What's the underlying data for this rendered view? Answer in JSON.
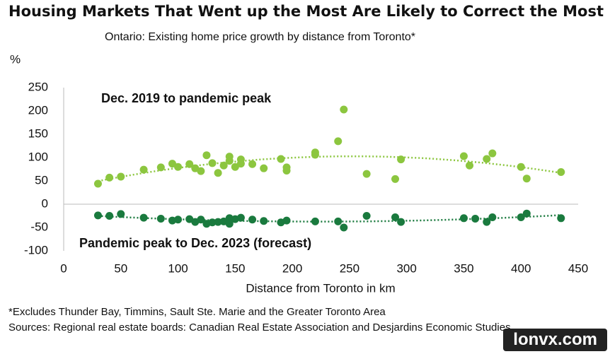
{
  "chart_data": {
    "type": "scatter",
    "title": "Housing Markets That Went up the Most Are Likely to Correct the Most",
    "subtitle": "Ontario: Existing home price growth by distance from Toronto*",
    "y_label": "%",
    "x_label": "Distance from Toronto in km",
    "footnotes": [
      "*Excludes Thunder Bay, Timmins, Sault Ste. Marie and the Greater Toronto Area",
      "Sources: Regional real estate boards: Canadian Real Estate Association and Desjardins Economic Studies"
    ],
    "watermark": "lonvx.com",
    "xlim": [
      0,
      450
    ],
    "xticks": [
      0,
      50,
      100,
      150,
      200,
      250,
      300,
      350,
      400,
      450
    ],
    "ylim": [
      -100,
      250
    ],
    "yticks": [
      -100,
      -50,
      0,
      50,
      100,
      150,
      200,
      250
    ],
    "series": [
      {
        "name": "Dec. 2019 to pandemic peak",
        "color": "#8cc63f",
        "x": [
          30,
          40,
          50,
          70,
          85,
          95,
          100,
          110,
          115,
          120,
          125,
          130,
          135,
          140,
          145,
          145,
          150,
          155,
          155,
          165,
          175,
          190,
          195,
          195,
          220,
          220,
          240,
          245,
          265,
          290,
          295,
          350,
          355,
          370,
          375,
          400,
          405,
          435
        ],
        "values": [
          44,
          57,
          59,
          74,
          79,
          87,
          80,
          86,
          77,
          71,
          105,
          88,
          67,
          83,
          102,
          93,
          80,
          87,
          96,
          86,
          77,
          97,
          79,
          72,
          111,
          106,
          135,
          203,
          65,
          54,
          96,
          103,
          83,
          97,
          109,
          80,
          55,
          69
        ]
      },
      {
        "name": "Pandemic peak to Dec. 2023 (forecast)",
        "color": "#1a7a3e",
        "x": [
          30,
          40,
          50,
          70,
          85,
          95,
          100,
          110,
          115,
          120,
          125,
          130,
          135,
          140,
          145,
          145,
          150,
          155,
          165,
          175,
          190,
          195,
          220,
          240,
          245,
          265,
          290,
          295,
          350,
          360,
          370,
          375,
          400,
          405,
          435
        ],
        "values": [
          -24,
          -25,
          -21,
          -29,
          -31,
          -35,
          -33,
          -32,
          -38,
          -33,
          -42,
          -39,
          -38,
          -37,
          -30,
          -42,
          -32,
          -29,
          -33,
          -36,
          -39,
          -35,
          -37,
          -37,
          -50,
          -25,
          -28,
          -38,
          -30,
          -31,
          -38,
          -28,
          -28,
          -20,
          -30
        ]
      }
    ]
  }
}
